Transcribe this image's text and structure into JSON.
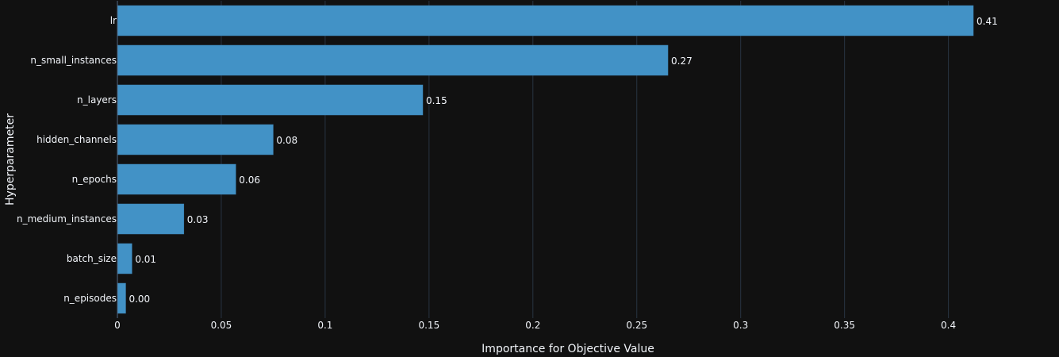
{
  "chart_data": {
    "type": "bar",
    "orientation": "horizontal",
    "categories": [
      "lr",
      "n_small_instances",
      "n_layers",
      "hidden_channels",
      "n_epochs",
      "n_medium_instances",
      "batch_size",
      "n_episodes"
    ],
    "values": [
      0.412,
      0.265,
      0.147,
      0.075,
      0.057,
      0.032,
      0.007,
      0.004
    ],
    "value_labels": [
      "0.41",
      "0.27",
      "0.15",
      "0.08",
      "0.06",
      "0.03",
      "0.01",
      "0.00"
    ],
    "xlabel": "Importance for Objective Value",
    "ylabel": "Hyperparameter",
    "xlim": [
      0,
      0.43
    ],
    "xticks": [
      0,
      0.05,
      0.1,
      0.15,
      0.2,
      0.25,
      0.3,
      0.35,
      0.4
    ],
    "xtick_labels": [
      "0",
      "0.05",
      "0.1",
      "0.15",
      "0.2",
      "0.25",
      "0.3",
      "0.35",
      "0.4"
    ],
    "grid": true,
    "colors": {
      "background": "#111111",
      "bar": "#4292c6",
      "text": "#f2f5fa",
      "grid": "#283442"
    }
  }
}
